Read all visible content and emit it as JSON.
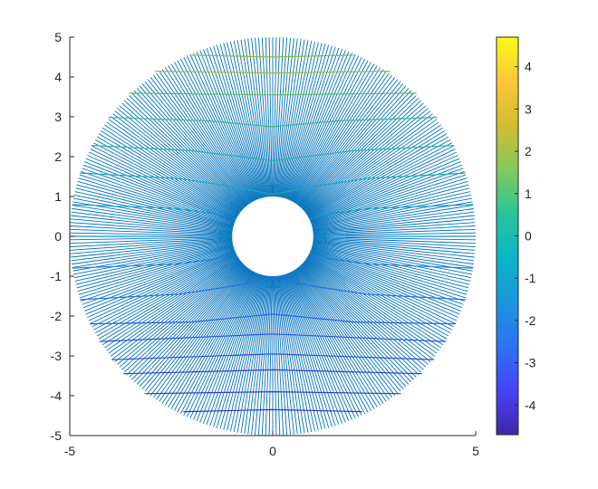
{
  "chart_data": {
    "type": "line",
    "title": "",
    "xlabel": "",
    "ylabel": "",
    "xlim": [
      -5,
      5
    ],
    "ylim": [
      -5,
      5
    ],
    "x_ticks": [
      "-5",
      "0",
      "5"
    ],
    "y_ticks": [
      "5",
      "4",
      "3",
      "2",
      "1",
      "0",
      "-1",
      "-2",
      "-3",
      "-4",
      "-5"
    ],
    "colorbar": {
      "colormap": "parula",
      "limits": [
        -4.7,
        4.7
      ],
      "ticks": [
        "4",
        "3",
        "2",
        "1",
        "0",
        "-1",
        "-2",
        "-3",
        "-4"
      ]
    },
    "annulus": {
      "inner_radius": 1,
      "outer_radius": 5
    },
    "radial_lines": {
      "count": 360,
      "color": "#0072BD"
    },
    "level_lines": [
      {
        "level": 4.5,
        "points": [
          [
            -2.0,
            4.55
          ],
          [
            0,
            4.5
          ],
          [
            2.0,
            4.55
          ]
        ],
        "color": "#8fb93a"
      },
      {
        "level": 4.2,
        "points": [
          [
            -3.3,
            4.15
          ],
          [
            0,
            4.1
          ],
          [
            3.3,
            4.15
          ]
        ],
        "color": "#9bbd36"
      },
      {
        "level": 3.7,
        "points": [
          [
            -3.9,
            3.6
          ],
          [
            0,
            3.55
          ],
          [
            3.9,
            3.6
          ]
        ],
        "color": "#62b95c"
      },
      {
        "level": 3.0,
        "points": [
          [
            -4.5,
            3.0
          ],
          [
            -1.6,
            2.9
          ],
          [
            0,
            2.75
          ],
          [
            1.6,
            2.9
          ],
          [
            4.5,
            3.0
          ]
        ],
        "color": "#3fb58a"
      },
      {
        "level": 2.3,
        "points": [
          [
            -4.8,
            2.3
          ],
          [
            -2.0,
            2.15
          ],
          [
            0,
            1.9
          ],
          [
            2.0,
            2.15
          ],
          [
            4.8,
            2.3
          ]
        ],
        "color": "#2bb0a3"
      },
      {
        "level": 1.6,
        "points": [
          [
            -4.95,
            1.6
          ],
          [
            -2.3,
            1.45
          ],
          [
            -1.0,
            1.25
          ],
          [
            0,
            1.05
          ],
          [
            1.0,
            1.25
          ],
          [
            2.3,
            1.45
          ],
          [
            4.95,
            1.6
          ]
        ],
        "color": "#16a9b8"
      },
      {
        "level": 0.8,
        "points": [
          [
            -4.99,
            0.8
          ],
          [
            -2.4,
            0.7
          ],
          [
            -1.3,
            0.55
          ]
        ],
        "color": "#0f9fcf"
      },
      {
        "level": 0.8,
        "points": [
          [
            1.3,
            0.55
          ],
          [
            2.4,
            0.7
          ],
          [
            4.99,
            0.8
          ]
        ],
        "color": "#0f9fcf"
      },
      {
        "level": 0.0,
        "points": [
          [
            -5,
            0.0
          ],
          [
            -1.0,
            0.0
          ]
        ],
        "color": "#0b90d6"
      },
      {
        "level": 0.0,
        "points": [
          [
            1.0,
            0.0
          ],
          [
            5,
            0.0
          ]
        ],
        "color": "#0b90d6"
      },
      {
        "level": -0.8,
        "points": [
          [
            -4.99,
            -0.8
          ],
          [
            -2.4,
            -0.7
          ],
          [
            -1.3,
            -0.55
          ]
        ],
        "color": "#1a7fe0"
      },
      {
        "level": -0.8,
        "points": [
          [
            1.3,
            -0.55
          ],
          [
            2.4,
            -0.7
          ],
          [
            4.99,
            -0.8
          ]
        ],
        "color": "#1a7fe0"
      },
      {
        "level": -1.6,
        "points": [
          [
            -4.95,
            -1.6
          ],
          [
            -2.3,
            -1.45
          ],
          [
            -1.0,
            -1.25
          ],
          [
            0,
            -1.05
          ],
          [
            1.0,
            -1.25
          ],
          [
            2.3,
            -1.45
          ],
          [
            4.95,
            -1.6
          ]
        ],
        "color": "#226fe6"
      },
      {
        "level": -2.3,
        "points": [
          [
            -4.7,
            -2.2
          ],
          [
            -2.0,
            -2.15
          ],
          [
            0,
            -1.95
          ],
          [
            2.0,
            -2.15
          ],
          [
            4.7,
            -2.2
          ]
        ],
        "color": "#2660e4"
      },
      {
        "level": -2.7,
        "points": [
          [
            -4.5,
            -2.65
          ],
          [
            0,
            -2.45
          ],
          [
            4.5,
            -2.65
          ]
        ],
        "color": "#2a55de"
      },
      {
        "level": -3.1,
        "points": [
          [
            -4.1,
            -3.1
          ],
          [
            0,
            -2.95
          ],
          [
            4.1,
            -3.1
          ]
        ],
        "color": "#2d4ad6"
      },
      {
        "level": -3.5,
        "points": [
          [
            -3.8,
            -3.45
          ],
          [
            0,
            -3.35
          ],
          [
            3.8,
            -3.45
          ]
        ],
        "color": "#3140cc"
      },
      {
        "level": -3.9,
        "points": [
          [
            -3.3,
            -3.95
          ],
          [
            0,
            -3.9
          ],
          [
            3.3,
            -3.95
          ]
        ],
        "color": "#3537c0"
      },
      {
        "level": -4.3,
        "points": [
          [
            -2.2,
            -4.4
          ],
          [
            0,
            -4.35
          ],
          [
            2.2,
            -4.4
          ]
        ],
        "color": "#3a2fb2"
      }
    ]
  },
  "colors": {
    "axis": "#262626",
    "colormap_stops": [
      "#3e26a8",
      "#4743f8",
      "#2c73f4",
      "#1b96de",
      "#0ab4c7",
      "#28c49b",
      "#82ca5b",
      "#d4bc31",
      "#fdc637",
      "#f9fb15"
    ]
  }
}
